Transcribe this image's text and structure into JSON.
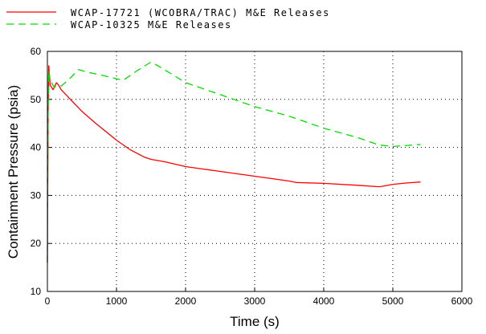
{
  "chart_data": {
    "type": "line",
    "title": "",
    "xlabel": "Time (s)",
    "ylabel": "Containment Pressure (psia)",
    "xlim": [
      0,
      6000
    ],
    "ylim": [
      10,
      60
    ],
    "xticks": [
      "0",
      "1000",
      "2000",
      "3000",
      "4000",
      "5000",
      "6000"
    ],
    "yticks": [
      "10",
      "20",
      "30",
      "40",
      "50",
      "60"
    ],
    "grid": "dotted",
    "legend_position": "top-left",
    "series": [
      {
        "name": "WCAP-17721 (WCOBRA/TRAC) M&E Releases",
        "color": "#ff0000",
        "style": "solid",
        "x": [
          0,
          10,
          20,
          30,
          40,
          60,
          80,
          100,
          130,
          160,
          200,
          300,
          400,
          500,
          700,
          1000,
          1200,
          1400,
          1500,
          1700,
          2000,
          2500,
          3000,
          3500,
          3600,
          4000,
          4500,
          4800,
          4850,
          5000,
          5200,
          5400
        ],
        "values": [
          16,
          48,
          57,
          55,
          53,
          52.5,
          52,
          52.5,
          53.5,
          53,
          52,
          50.5,
          49,
          47.5,
          45,
          41.5,
          39.5,
          38,
          37.5,
          37,
          36,
          35,
          34,
          33,
          32.7,
          32.5,
          32.1,
          31.8,
          31.9,
          32.3,
          32.6,
          32.8
        ]
      },
      {
        "name": "WCAP-10325 M&E Releases",
        "color": "#00dd00",
        "style": "dashed",
        "x": [
          0,
          10,
          20,
          30,
          40,
          60,
          80,
          100,
          130,
          160,
          200,
          300,
          450,
          600,
          800,
          1000,
          1100,
          1300,
          1500,
          1600,
          2000,
          2500,
          3000,
          3500,
          4000,
          4500,
          4800,
          5000,
          5400
        ],
        "values": [
          16,
          48,
          56,
          55,
          54,
          53.5,
          53,
          52.5,
          52.8,
          53,
          52.8,
          54,
          56.2,
          55.6,
          55,
          54.3,
          54,
          56,
          57.8,
          57,
          53.5,
          51,
          48.5,
          46.5,
          44,
          42,
          40.5,
          40.2,
          40.6
        ]
      }
    ]
  }
}
